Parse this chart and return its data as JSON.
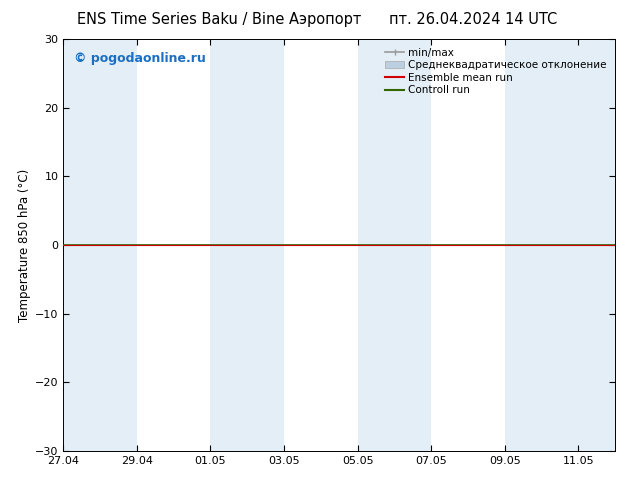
{
  "title_left": "ENS Time Series Baku / Bine Аэропорт",
  "title_right": "пт. 26.04.2024 14 UTC",
  "ylabel": "Temperature 850 hPa (°C)",
  "ylim": [
    -30,
    30
  ],
  "yticks": [
    -30,
    -20,
    -10,
    0,
    10,
    20,
    30
  ],
  "x_start": "2024-04-27",
  "x_end": "2024-05-12",
  "xtick_labels": [
    "27.04",
    "29.04",
    "01.05",
    "03.05",
    "05.05",
    "07.05",
    "09.05",
    "11.05"
  ],
  "xtick_days": [
    0,
    2,
    4,
    6,
    8,
    10,
    12,
    14
  ],
  "watermark": "© pogodaonline.ru",
  "watermark_color": "#1a6fc4",
  "background_color": "#ffffff",
  "band_color": "#cce0f0",
  "band_alpha": 0.55,
  "zero_line_color_red": "#cc0000",
  "zero_line_color_green": "#336600",
  "legend_minmax_color": "#999999",
  "legend_stddev_color": "#bbcfe0",
  "title_fontsize": 10.5,
  "axis_fontsize": 8.5,
  "tick_fontsize": 8,
  "watermark_fontsize": 9,
  "legend_fontsize": 7.5,
  "band_positions": [
    [
      0,
      2
    ],
    [
      4,
      6
    ],
    [
      8,
      10
    ],
    [
      12,
      15
    ]
  ],
  "total_days": 15
}
